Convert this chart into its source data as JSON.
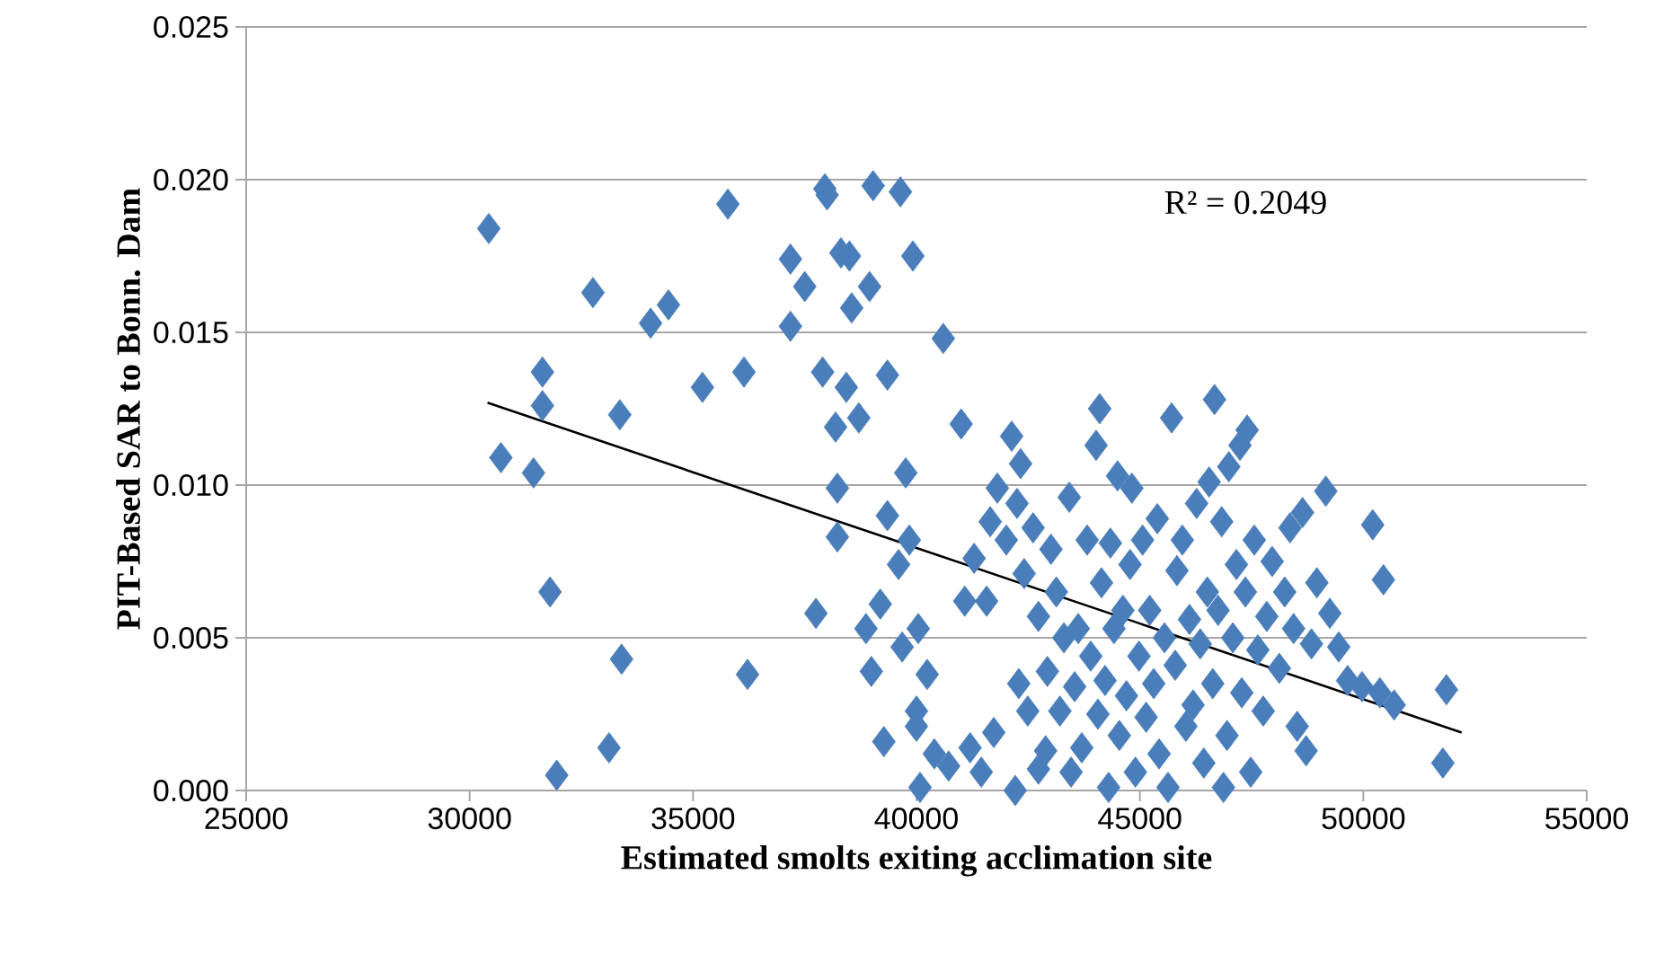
{
  "chart_data": {
    "type": "scatter",
    "xlabel": "Estimated smolts exiting acclimation site",
    "ylabel": "PIT-Based SAR to Bonn. Dam",
    "annotations": [
      "R² = 0.2049"
    ],
    "xlim": [
      25000,
      55000
    ],
    "xticks": [
      25000,
      30000,
      35000,
      40000,
      45000,
      50000,
      55000
    ],
    "ylim": [
      0,
      0.025
    ],
    "yticks": [
      {
        "value": 0,
        "label": "0.000"
      },
      {
        "value": 0.005,
        "label": "0.005"
      },
      {
        "value": 0.01,
        "label": "0.010"
      },
      {
        "value": 0.015,
        "label": "0.015"
      },
      {
        "value": 0.02,
        "label": "0.020"
      },
      {
        "value": 0.025,
        "label": "0.025"
      }
    ],
    "grid": "y",
    "series": [
      {
        "color": "#4a7ebb",
        "marker": "diamond",
        "x": [
          30430,
          30700,
          31430,
          31630,
          31630,
          31800,
          31950,
          32760,
          33120,
          33360,
          33400,
          34050,
          34450,
          35210,
          35780,
          36140,
          36220,
          37180,
          37180,
          37500,
          37750,
          37950,
          38000,
          37900,
          38190,
          38230,
          38230,
          38310,
          38500,
          38430,
          38550,
          38710,
          38950,
          39030,
          38870,
          38990,
          39190,
          39270,
          39350,
          39350,
          39640,
          39680,
          39600,
          39760,
          39840,
          39920,
          40000,
          40000,
          40040,
          40080,
          40240,
          40400,
          40600,
          40720,
          41000,
          41080,
          41200,
          41290,
          41450,
          41570,
          41650,
          41810,
          41730,
          42010,
          42130,
          42210,
          42250,
          42330,
          42290,
          42410,
          42490,
          42610,
          42730,
          42730,
          42890,
          42930,
          43010,
          43130,
          43210,
          43300,
          43420,
          43460,
          43540,
          43620,
          43700,
          43820,
          43900,
          44020,
          44060,
          44100,
          44140,
          44220,
          44300,
          44340,
          44420,
          44500,
          44540,
          44620,
          44700,
          44780,
          44820,
          44900,
          44980,
          45060,
          45140,
          45220,
          45310,
          45390,
          45430,
          45550,
          45630,
          45710,
          45790,
          45830,
          45950,
          46030,
          46110,
          46190,
          46270,
          46350,
          46430,
          46510,
          46550,
          46630,
          46670,
          46750,
          46830,
          46870,
          46950,
          46990,
          47080,
          47160,
          47240,
          47280,
          47360,
          47400,
          47480,
          47560,
          47640,
          47760,
          47840,
          47960,
          48120,
          48240,
          48360,
          48440,
          48520,
          48640,
          48720,
          48840,
          48960,
          49160,
          49250,
          49450,
          49650,
          49970,
          50210,
          50370,
          50450,
          50690,
          51860,
          51780
        ],
        "values": [
          0.0184,
          0.0109,
          0.0104,
          0.0137,
          0.0126,
          0.0065,
          0.0005,
          0.0163,
          0.0014,
          0.0123,
          0.0043,
          0.0153,
          0.0159,
          0.0132,
          0.0192,
          0.0137,
          0.0038,
          0.0174,
          0.0152,
          0.0165,
          0.0058,
          0.0197,
          0.0195,
          0.0137,
          0.0119,
          0.0083,
          0.0099,
          0.0176,
          0.0175,
          0.0132,
          0.0158,
          0.0122,
          0.0165,
          0.0198,
          0.0053,
          0.0039,
          0.0061,
          0.0016,
          0.009,
          0.0136,
          0.0196,
          0.0047,
          0.0074,
          0.0104,
          0.0082,
          0.0175,
          0.0026,
          0.0021,
          0.0053,
          0.0001,
          0.0038,
          0.0012,
          0.0148,
          0.0008,
          0.012,
          0.0062,
          0.0014,
          0.0076,
          0.0006,
          0.0062,
          0.0088,
          0.0099,
          0.0019,
          0.0082,
          0.0116,
          0.0,
          0.0094,
          0.0107,
          0.0035,
          0.0071,
          0.0026,
          0.0086,
          0.0057,
          0.0007,
          0.0013,
          0.0039,
          0.0079,
          0.0065,
          0.0026,
          0.005,
          0.0096,
          0.0006,
          0.0034,
          0.0053,
          0.0014,
          0.0082,
          0.0044,
          0.0113,
          0.0025,
          0.0125,
          0.0068,
          0.0036,
          0.0001,
          0.0081,
          0.0053,
          0.0103,
          0.0018,
          0.0059,
          0.0031,
          0.0074,
          0.0099,
          0.0006,
          0.0044,
          0.0082,
          0.0024,
          0.0059,
          0.0035,
          0.0089,
          0.0012,
          0.005,
          0.0001,
          0.0122,
          0.0041,
          0.0072,
          0.0082,
          0.0021,
          0.0056,
          0.0028,
          0.0094,
          0.0048,
          0.0009,
          0.0065,
          0.0101,
          0.0035,
          0.0128,
          0.0059,
          0.0088,
          0.0001,
          0.0018,
          0.0106,
          0.005,
          0.0074,
          0.0113,
          0.0032,
          0.0065,
          0.0118,
          0.0006,
          0.0082,
          0.0046,
          0.0026,
          0.0057,
          0.0075,
          0.004,
          0.0065,
          0.0086,
          0.0053,
          0.0021,
          0.0091,
          0.0013,
          0.0048,
          0.0068,
          0.0098,
          0.0058,
          0.0047,
          0.0036,
          0.0034,
          0.0087,
          0.0032,
          0.0069,
          0.0028,
          0.0033,
          0.0009
        ]
      },
      {
        "type": "line",
        "color": "#000000",
        "marker": "none",
        "x": [
          30400,
          52200
        ],
        "values": [
          0.0127,
          0.0019
        ]
      }
    ]
  }
}
